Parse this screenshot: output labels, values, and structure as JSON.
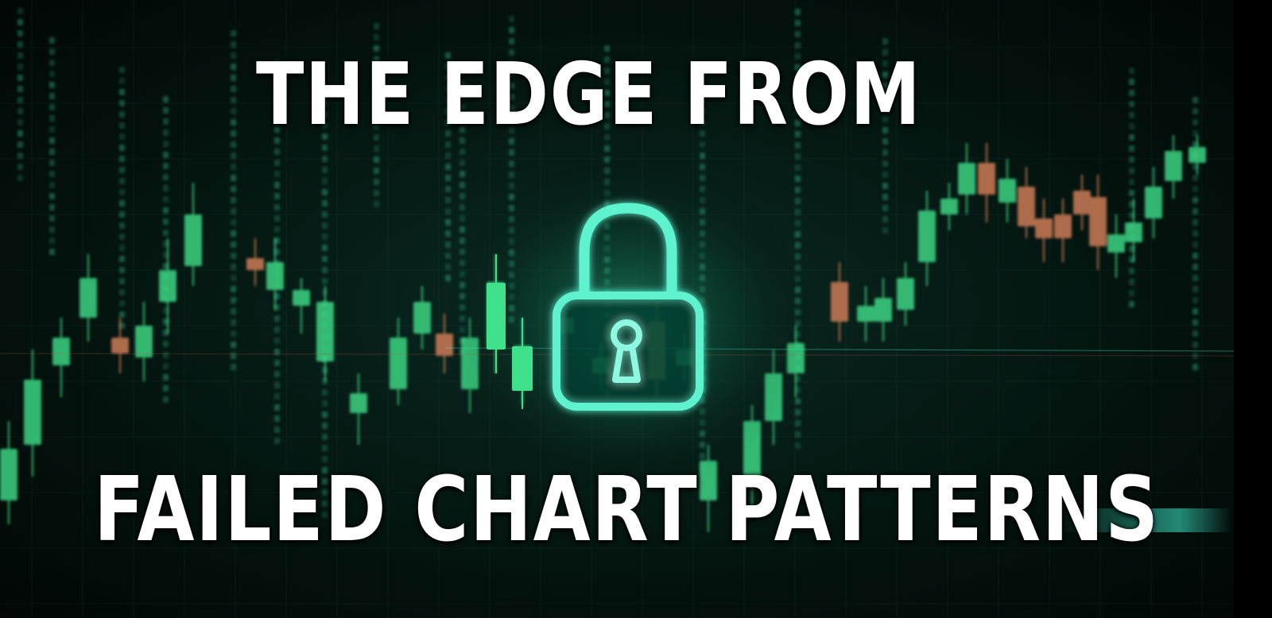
{
  "headline": {
    "line1": "THE EDGE FROM",
    "line2": "FAILED CHART PATTERNS"
  },
  "colors": {
    "background": "#02100c",
    "bullish_candle": "#3fe08a",
    "bearish_candle": "#d9825a",
    "lock_glow": "#5ff2cf",
    "text": "#ffffff"
  },
  "icons": {
    "center": "padlock-icon"
  }
}
